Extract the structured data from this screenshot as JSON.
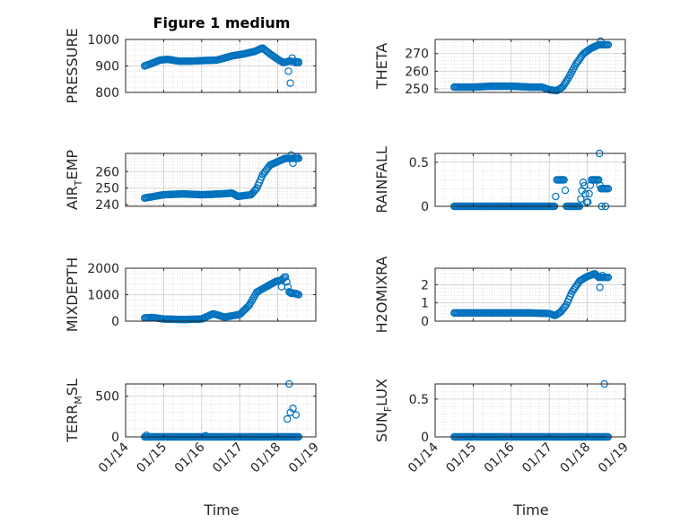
{
  "figure": {
    "title": "Figure 1 medium",
    "marker_color": "#0072bd",
    "axis_color": "#262626",
    "grid_color": "#d0d0d0",
    "xlabel_left": "Time",
    "xlabel_right": "Time",
    "x_tick_labels": [
      "01/14",
      "01/15",
      "01/16",
      "01/17",
      "01/18",
      "01/19"
    ]
  },
  "chart_data": [
    {
      "type": "scatter",
      "ylabel": "PRESSURE",
      "xlim": [
        14,
        19
      ],
      "ylim": [
        800,
        1000
      ],
      "yticks": [
        800,
        900,
        1000
      ],
      "x_range": [
        14.5,
        18.55
      ],
      "profile": [
        [
          14.5,
          900
        ],
        [
          14.7,
          910
        ],
        [
          14.9,
          922
        ],
        [
          15.1,
          925
        ],
        [
          15.4,
          918
        ],
        [
          15.7,
          918
        ],
        [
          16.0,
          920
        ],
        [
          16.4,
          922
        ],
        [
          16.8,
          938
        ],
        [
          17.1,
          945
        ],
        [
          17.4,
          955
        ],
        [
          17.6,
          968
        ],
        [
          17.8,
          945
        ],
        [
          18.0,
          925
        ],
        [
          18.15,
          912
        ],
        [
          18.3,
          918
        ],
        [
          18.55,
          915
        ]
      ],
      "extra_points": [
        [
          18.28,
          880
        ],
        [
          18.33,
          835
        ],
        [
          18.38,
          930
        ],
        [
          18.47,
          912
        ],
        [
          18.55,
          912
        ]
      ]
    },
    {
      "type": "scatter",
      "ylabel": "THETA",
      "xlim": [
        14,
        19
      ],
      "ylim": [
        248,
        278
      ],
      "yticks": [
        250,
        260,
        270
      ],
      "x_range": [
        14.5,
        18.55
      ],
      "profile": [
        [
          14.5,
          251
        ],
        [
          15.0,
          251
        ],
        [
          15.5,
          251.5
        ],
        [
          16.0,
          251.5
        ],
        [
          16.5,
          251
        ],
        [
          16.8,
          251
        ],
        [
          17.0,
          249.5
        ],
        [
          17.2,
          249
        ],
        [
          17.35,
          251
        ],
        [
          17.5,
          256
        ],
        [
          17.7,
          264
        ],
        [
          17.9,
          270
        ],
        [
          18.1,
          273
        ],
        [
          18.3,
          275
        ],
        [
          18.55,
          275
        ]
      ],
      "extra_points": [
        [
          18.35,
          277
        ]
      ]
    },
    {
      "type": "scatter",
      "ylabel": "AIR_TEMP",
      "ylabel_main": "AIR",
      "ylabel_sub": "T",
      "ylabel_rest": "EMP",
      "xlim": [
        14,
        19
      ],
      "ylim": [
        239,
        271
      ],
      "yticks": [
        240,
        250,
        260
      ],
      "x_range": [
        14.5,
        18.55
      ],
      "profile": [
        [
          14.5,
          244
        ],
        [
          15.0,
          246
        ],
        [
          15.5,
          246.5
        ],
        [
          16.0,
          246
        ],
        [
          16.5,
          246.5
        ],
        [
          16.8,
          247
        ],
        [
          16.95,
          245
        ],
        [
          17.3,
          246
        ],
        [
          17.45,
          250
        ],
        [
          17.6,
          258
        ],
        [
          17.8,
          264
        ],
        [
          18.0,
          266
        ],
        [
          18.2,
          268
        ],
        [
          18.4,
          268
        ],
        [
          18.55,
          268
        ]
      ],
      "extra_points": [
        [
          18.4,
          265
        ],
        [
          18.35,
          270
        ],
        [
          18.5,
          269
        ]
      ]
    },
    {
      "type": "scatter",
      "ylabel": "RAINFALL",
      "xlim": [
        14,
        19
      ],
      "ylim": [
        0,
        0.6
      ],
      "yticks": [
        0,
        0.5
      ],
      "x_range": [
        14.5,
        18.55
      ],
      "profile": [
        [
          14.5,
          0
        ],
        [
          17.15,
          0
        ],
        [
          17.2,
          0.3
        ],
        [
          17.4,
          0.3
        ],
        [
          17.45,
          0
        ],
        [
          17.8,
          0
        ],
        [
          17.9,
          0.3
        ],
        [
          18.0,
          0
        ],
        [
          18.1,
          0.3
        ],
        [
          18.3,
          0.3
        ],
        [
          18.35,
          0.2
        ],
        [
          18.45,
          0.2
        ]
      ],
      "extra_points": [
        [
          18.32,
          0.6
        ],
        [
          18.48,
          0
        ],
        [
          18.38,
          0
        ]
      ]
    },
    {
      "type": "scatter",
      "ylabel": "MIXDEPTH",
      "xlim": [
        14,
        19
      ],
      "ylim": [
        0,
        2000
      ],
      "yticks": [
        0,
        1000,
        2000
      ],
      "x_range": [
        14.5,
        18.55
      ],
      "profile": [
        [
          14.5,
          120
        ],
        [
          14.7,
          140
        ],
        [
          15.0,
          80
        ],
        [
          15.5,
          60
        ],
        [
          16.0,
          80
        ],
        [
          16.3,
          280
        ],
        [
          16.6,
          150
        ],
        [
          17.0,
          250
        ],
        [
          17.25,
          600
        ],
        [
          17.45,
          1100
        ],
        [
          17.7,
          1300
        ],
        [
          17.95,
          1500
        ],
        [
          18.1,
          1550
        ],
        [
          18.2,
          1700
        ],
        [
          18.3,
          1100
        ],
        [
          18.55,
          1000
        ]
      ],
      "extra_points": [
        [
          18.35,
          1050
        ],
        [
          18.48,
          1050
        ],
        [
          18.1,
          1300
        ]
      ]
    },
    {
      "type": "scatter",
      "ylabel": "H2OMIXRA",
      "xlim": [
        14,
        19
      ],
      "ylim": [
        0,
        2.9
      ],
      "yticks": [
        0,
        1,
        2
      ],
      "x_range": [
        14.5,
        18.55
      ],
      "profile": [
        [
          14.5,
          0.45
        ],
        [
          16.5,
          0.45
        ],
        [
          17.0,
          0.42
        ],
        [
          17.15,
          0.3
        ],
        [
          17.3,
          0.5
        ],
        [
          17.45,
          0.9
        ],
        [
          17.6,
          1.6
        ],
        [
          17.8,
          2.2
        ],
        [
          18.0,
          2.45
        ],
        [
          18.2,
          2.6
        ],
        [
          18.3,
          2.4
        ],
        [
          18.55,
          2.4
        ]
      ],
      "extra_points": [
        [
          18.33,
          1.85
        ],
        [
          18.4,
          2.5
        ]
      ]
    },
    {
      "type": "scatter",
      "ylabel": "TERR_MSL",
      "ylabel_main": "TERR",
      "ylabel_sub": "M",
      "ylabel_rest": "SL",
      "xlim": [
        14,
        19
      ],
      "ylim": [
        0,
        650
      ],
      "yticks": [
        0,
        500
      ],
      "x_range": [
        14.5,
        18.55
      ],
      "profile": [
        [
          14.5,
          0
        ],
        [
          18.55,
          0
        ]
      ],
      "extra_points": [
        [
          14.55,
          20
        ],
        [
          16.1,
          15
        ],
        [
          18.3,
          650
        ],
        [
          18.25,
          220
        ],
        [
          18.33,
          300
        ],
        [
          18.4,
          350
        ],
        [
          18.48,
          270
        ]
      ]
    },
    {
      "type": "scatter",
      "ylabel": "SUN_FLUX",
      "ylabel_main": "SUN",
      "ylabel_sub": "F",
      "ylabel_rest": "LUX",
      "xlim": [
        14,
        19
      ],
      "ylim": [
        0,
        0.7
      ],
      "yticks": [
        0,
        0.5
      ],
      "x_range": [
        14.5,
        18.55
      ],
      "profile": [
        [
          14.5,
          0
        ],
        [
          18.55,
          0
        ]
      ],
      "extra_points": [
        [
          18.45,
          0.7
        ]
      ]
    }
  ]
}
